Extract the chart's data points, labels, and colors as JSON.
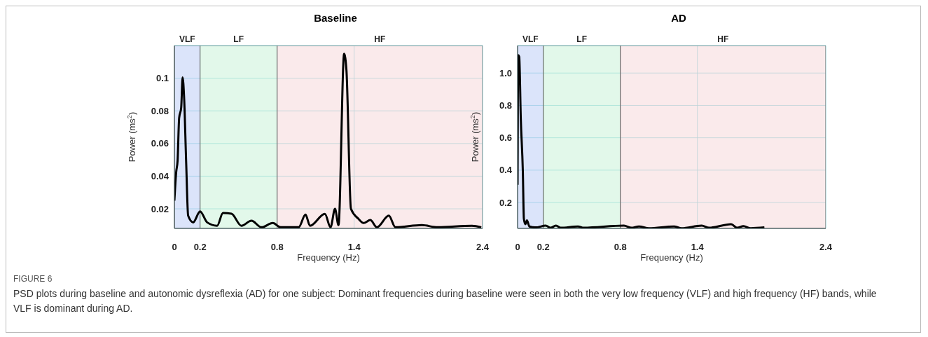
{
  "chart_data": [
    {
      "type": "line",
      "title": "Baseline",
      "xlabel": "Frequency (Hz)",
      "ylabel": "Power (ms$^{2}$)",
      "xlim": [
        0,
        2.4
      ],
      "xticks": [
        0,
        0.2,
        0.8,
        1.4,
        2.4
      ],
      "ylim": [
        0.008,
        0.12
      ],
      "yticks": [
        0.02,
        0.04,
        0.06,
        0.08,
        0.1
      ],
      "grid": true,
      "bands": [
        {
          "axis": "x",
          "from": 0,
          "to": 0.2,
          "label": "VLF",
          "color": "#c8d6f7"
        },
        {
          "axis": "x",
          "from": 0.2,
          "to": 0.8,
          "label": "LF",
          "color": "#d2f5df"
        },
        {
          "axis": "x",
          "from": 0.8,
          "to": 2.4,
          "label": "HF",
          "color": "#f7dfe0"
        }
      ],
      "series": [
        {
          "color": "#000000",
          "x": [
            0,
            0.014,
            0.025,
            0.037,
            0.053,
            0.064,
            0.076,
            0.092,
            0.107,
            0.146,
            0.2,
            0.255,
            0.333,
            0.378,
            0.444,
            0.522,
            0.6,
            0.678,
            0.767,
            0.827,
            0.968,
            1.021,
            1.056,
            1.172,
            1.216,
            1.251,
            1.278,
            1.322,
            1.34,
            1.375,
            1.433,
            1.474,
            1.526,
            1.577,
            1.67,
            1.721,
            1.927,
            2.05,
            2.318,
            2.39
          ],
          "values": [
            0.025,
            0.0425,
            0.0496,
            0.0756,
            0.082,
            0.1005,
            0.0875,
            0.0477,
            0.0158,
            0.0117,
            0.0184,
            0.0117,
            0.0096,
            0.0174,
            0.017,
            0.0096,
            0.0127,
            0.0087,
            0.0113,
            0.0087,
            0.0087,
            0.0165,
            0.0096,
            0.0169,
            0.0087,
            0.02,
            0.01,
            0.115,
            0.1048,
            0.02,
            0.0139,
            0.0113,
            0.0131,
            0.0087,
            0.0158,
            0.0087,
            0.01,
            0.0087,
            0.0096,
            0.0087
          ]
        }
      ],
      "annotations": [
        "FIGURE 6",
        "PSD plots during baseline and autonomic dysreflexia (AD) for one subject: Dominant frequencies during baseline were seen in both the very low frequency (VLF) and high frequency (HF) bands, while VLF is dominant during AD."
      ]
    },
    {
      "type": "line",
      "title": "AD",
      "xlabel": "Frequency (Hz)",
      "ylabel": "Power (ms$^{2}$)",
      "xlim": [
        0,
        2.4
      ],
      "xticks": [
        0,
        0.2,
        0.8,
        1.4,
        2.4
      ],
      "ylim": [
        0.04,
        1.17
      ],
      "yticks": [
        {
          "value": 0.2,
          "label": "0.2"
        },
        {
          "value": 0.4,
          "label": "0.4"
        },
        {
          "value": 0.6,
          "label": "0.6"
        },
        {
          "value": 0.8,
          "label": "0.8"
        },
        {
          "value": 1.0,
          "label": "1.0"
        }
      ],
      "grid": true,
      "bands": [
        {
          "axis": "x",
          "from": 0,
          "to": 0.2,
          "label": "VLF",
          "color": "#c8d6f7"
        },
        {
          "axis": "x",
          "from": 0.2,
          "to": 0.8,
          "label": "LF",
          "color": "#d2f5df"
        },
        {
          "axis": "x",
          "from": 0.8,
          "to": 2.4,
          "label": "HF",
          "color": "#f7dfe0"
        }
      ],
      "series": [
        {
          "color": "#000000",
          "x": [
            0,
            0.005,
            0.013,
            0.025,
            0.041,
            0.049,
            0.06,
            0.073,
            0.092,
            0.14,
            0.219,
            0.256,
            0.299,
            0.335,
            0.47,
            0.515,
            0.828,
            0.887,
            0.945,
            1.023,
            1.218,
            1.277,
            1.434,
            1.491,
            1.663,
            1.711,
            1.759,
            1.816,
            1.922
          ],
          "values": [
            0.31,
            1.11,
            1.1,
            0.72,
            0.39,
            0.1,
            0.066,
            0.09,
            0.052,
            0.046,
            0.057,
            0.044,
            0.057,
            0.044,
            0.052,
            0.044,
            0.057,
            0.044,
            0.052,
            0.041,
            0.052,
            0.041,
            0.057,
            0.044,
            0.066,
            0.044,
            0.054,
            0.041,
            0.046
          ]
        }
      ]
    }
  ]
}
